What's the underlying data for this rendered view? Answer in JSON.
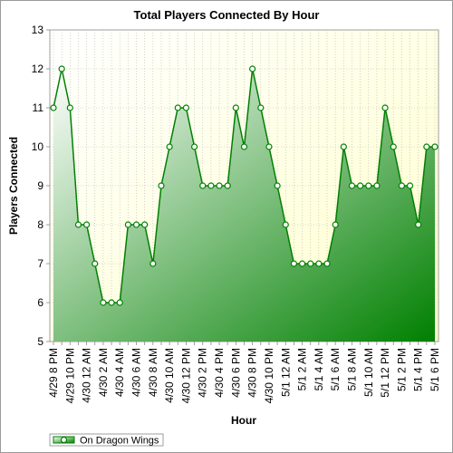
{
  "chart_data": {
    "type": "area",
    "title": "Total Players Connected By Hour",
    "xlabel": "Hour",
    "ylabel": "Players Connected",
    "ylim": [
      5,
      13
    ],
    "yticks": [
      5,
      6,
      7,
      8,
      9,
      10,
      11,
      12,
      13
    ],
    "grid": true,
    "legend_position": "bottom-left",
    "tick_labels": [
      "4/29 8 PM",
      "4/29 10 PM",
      "4/30 12 AM",
      "4/30 2 AM",
      "4/30 4 AM",
      "4/30 6 AM",
      "4/30 8 AM",
      "4/30 10 AM",
      "4/30 12 PM",
      "4/30 2 PM",
      "4/30 4 PM",
      "4/30 6 PM",
      "4/30 8 PM",
      "4/30 10 PM",
      "5/1 12 AM",
      "5/1 2 AM",
      "5/1 4 AM",
      "5/1 6 AM",
      "5/1 8 AM",
      "5/1 10 AM",
      "5/1 12 PM",
      "5/1 2 PM",
      "5/1 4 PM",
      "5/1 6 PM"
    ],
    "series": [
      {
        "name": "On Dragon Wings",
        "color": "#008000",
        "values": [
          11,
          12,
          11,
          8,
          8,
          7,
          6,
          6,
          6,
          8,
          8,
          8,
          7,
          9,
          10,
          11,
          11,
          10,
          9,
          9,
          9,
          9,
          11,
          10,
          12,
          11,
          10,
          9,
          8,
          7,
          7,
          7,
          7,
          7,
          8,
          10,
          9,
          9,
          9,
          9,
          11,
          10,
          9,
          9,
          8,
          10,
          10
        ]
      }
    ]
  }
}
